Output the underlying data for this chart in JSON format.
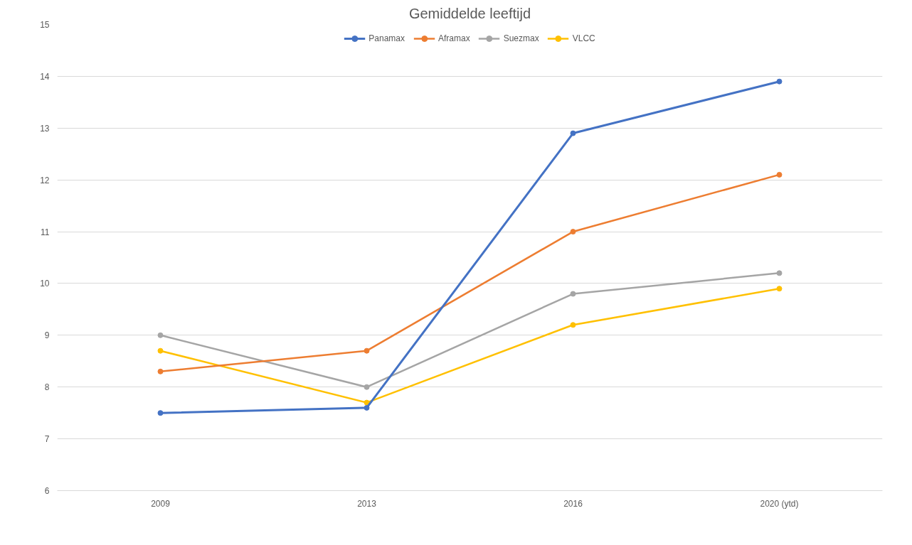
{
  "chart_data": {
    "type": "line",
    "title": "Gemiddelde leeftijd",
    "categories": [
      "2009",
      "2013",
      "2016",
      "2020 (ytd)"
    ],
    "series": [
      {
        "name": "Panamax",
        "color": "#4472c4",
        "values": [
          7.5,
          7.6,
          12.9,
          13.9
        ]
      },
      {
        "name": "Aframax",
        "color": "#ed7d31",
        "values": [
          8.3,
          8.7,
          11.0,
          12.1
        ]
      },
      {
        "name": "Suezmax",
        "color": "#a5a5a5",
        "values": [
          9.0,
          8.0,
          9.8,
          10.2
        ]
      },
      {
        "name": "VLCC",
        "color": "#ffc000",
        "values": [
          8.7,
          7.7,
          9.2,
          9.9
        ]
      }
    ],
    "ylim": [
      6,
      15
    ],
    "yticks": [
      6,
      7,
      8,
      9,
      10,
      11,
      12,
      13,
      14,
      15
    ],
    "grid": "y",
    "legend": "top",
    "marker": "circle",
    "line_style": "solid"
  }
}
